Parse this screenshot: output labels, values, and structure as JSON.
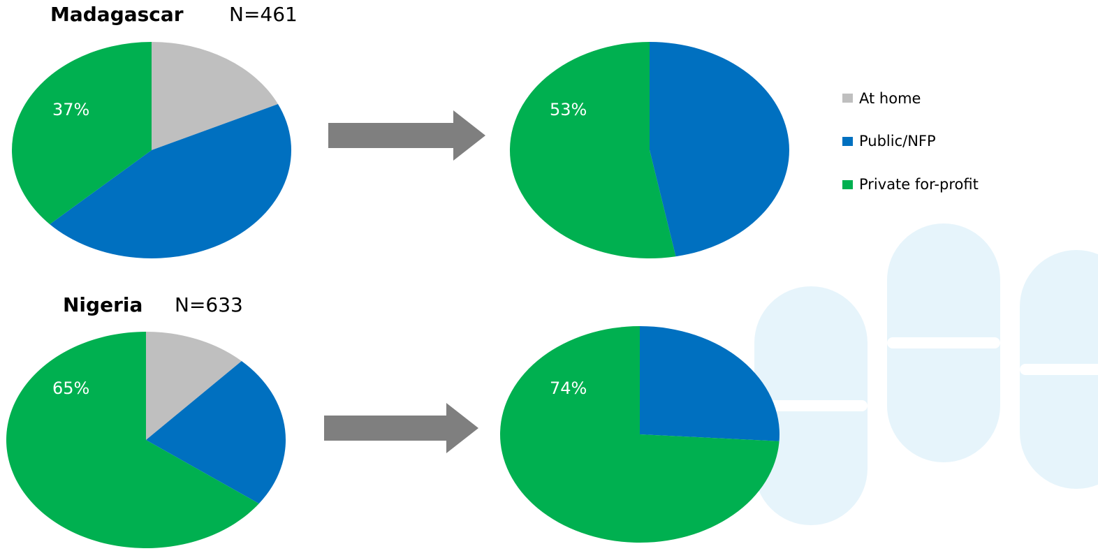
{
  "colors": {
    "at_home": "#bfbfbf",
    "public_nfp": "#0070c0",
    "private_for_profit": "#00b050",
    "arrow": "#7f7f7f",
    "watermark": "#e6f4fb"
  },
  "panels": [
    {
      "country": "Madagascar",
      "n_label": "N=461"
    },
    {
      "country": "Nigeria",
      "n_label": "N=633"
    }
  ],
  "legend": {
    "position": "right",
    "items": [
      {
        "label": "At home",
        "color": "#bfbfbf"
      },
      {
        "label": "Public/NFP",
        "color": "#0070c0"
      },
      {
        "label": "Private for-profit",
        "color": "#00b050"
      }
    ]
  },
  "chart_data": [
    {
      "type": "pie",
      "title": "Madagascar",
      "subtitle": "N=461",
      "categories": [
        "At home",
        "Public/NFP",
        "Private for-profit"
      ],
      "values": [
        18,
        45,
        37
      ],
      "data_labels": [
        "",
        "",
        "37%"
      ]
    },
    {
      "type": "pie",
      "title": "",
      "categories": [
        "Public/NFP",
        "Private for-profit"
      ],
      "values": [
        47,
        53
      ],
      "data_labels": [
        "",
        "53%"
      ]
    },
    {
      "type": "pie",
      "title": "Nigeria",
      "subtitle": "N=633",
      "categories": [
        "At home",
        "Public/NFP",
        "Private for-profit"
      ],
      "values": [
        12,
        23,
        65
      ],
      "data_labels": [
        "",
        "",
        "65%"
      ]
    },
    {
      "type": "pie",
      "title": "",
      "categories": [
        "Public/NFP",
        "Private for-profit"
      ],
      "values": [
        26,
        74
      ],
      "data_labels": [
        "",
        "74%"
      ]
    }
  ]
}
